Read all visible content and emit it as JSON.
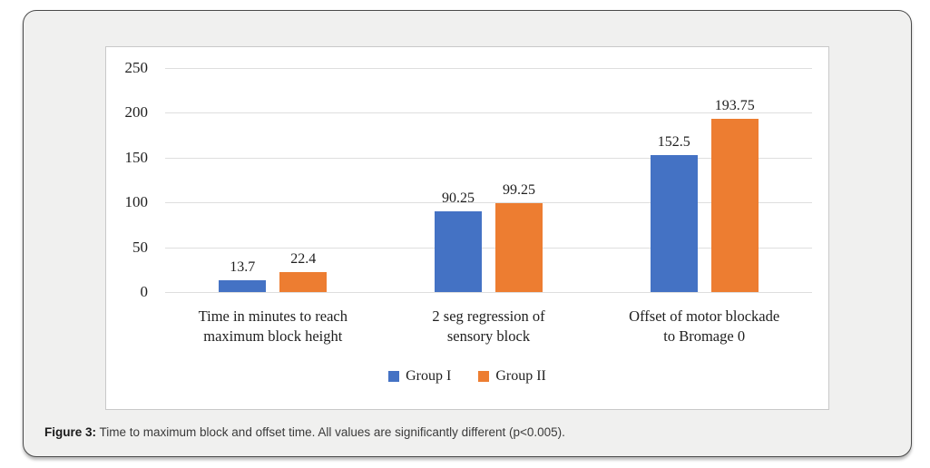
{
  "figure": {
    "caption_label": "Figure 3:",
    "caption_text": " Time to maximum block and offset time. All values are significantly different (p<0.005)."
  },
  "chart_data": {
    "type": "bar",
    "title": "",
    "xlabel": "",
    "ylabel": "",
    "categories": [
      "Time in minutes to reach maximum block height",
      "2 seg regression of sensory block",
      "Offset of motor blockade to Bromage 0"
    ],
    "categories_lines": [
      [
        "Time in minutes to reach",
        "maximum block height"
      ],
      [
        "2 seg regression of",
        "sensory block"
      ],
      [
        "Offset of motor blockade",
        "to Bromage 0"
      ]
    ],
    "series": [
      {
        "name": "Group I",
        "color": "#4472C4",
        "values": [
          13.7,
          90.25,
          152.5
        ]
      },
      {
        "name": "Group II",
        "color": "#ED7D31",
        "values": [
          22.4,
          99.25,
          193.75
        ]
      }
    ],
    "y_ticks": [
      0,
      50,
      100,
      150,
      200,
      250
    ],
    "ylim": [
      0,
      250
    ],
    "grid": true,
    "value_labels": true,
    "legend_position": "bottom"
  },
  "colors": {
    "series_group1": "#4472C4",
    "series_group2": "#ED7D31",
    "gridline": "#dedede",
    "panel_background": "#f0f0ef",
    "panel_border": "#4a4a4a",
    "chart_background": "#ffffff",
    "text": "#1f1f1f"
  }
}
